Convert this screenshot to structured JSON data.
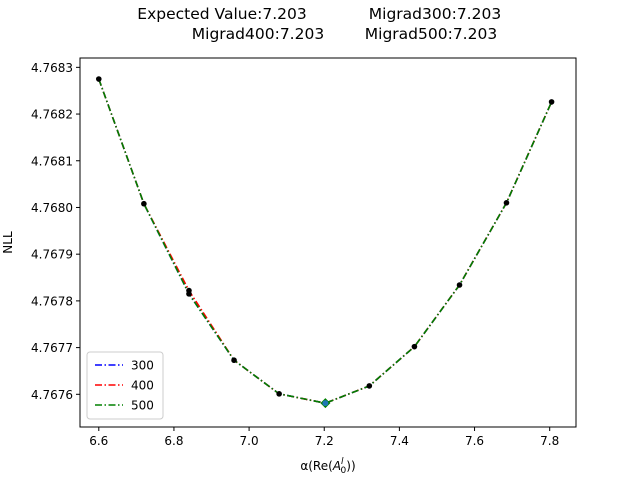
{
  "chart_data": {
    "type": "line",
    "title_lines": [
      [
        "Expected Value:7.203",
        "Migrad300:7.203"
      ],
      [
        "Migrad400:7.203",
        "Migrad500:7.203"
      ]
    ],
    "xlabel_prefix": "α(Re(",
    "xlabel_math": "A",
    "xlabel_sup": "l",
    "xlabel_sub": "0",
    "xlabel_suffix": "))",
    "ylabel": "NLL",
    "xlim": [
      6.55,
      7.87
    ],
    "ylim": [
      4.76753,
      4.76832
    ],
    "xticks": [
      6.6,
      6.8,
      7.0,
      7.2,
      7.4,
      7.6,
      7.8
    ],
    "xtick_labels": [
      "6.6",
      "6.8",
      "7.0",
      "7.2",
      "7.4",
      "7.6",
      "7.8"
    ],
    "yticks": [
      4.7676,
      4.7677,
      4.7678,
      4.7679,
      4.768,
      4.7681,
      4.7682,
      4.7683
    ],
    "ytick_labels": [
      "4.7676",
      "4.7677",
      "4.7678",
      "4.7679",
      "4.7680",
      "4.7681",
      "4.7682",
      "4.7683"
    ],
    "grid": false,
    "legend_position": "lower-left",
    "series": [
      {
        "name": "300",
        "color": "#0000ff",
        "x": [
          6.6,
          6.72,
          6.84,
          6.96,
          7.08,
          7.203,
          7.32,
          7.44,
          7.56,
          7.685,
          7.805
        ],
        "y": [
          4.768275,
          4.768008,
          4.767815,
          4.767673,
          4.767601,
          4.767581,
          4.767618,
          4.767702,
          4.767834,
          4.76801,
          4.768226
        ]
      },
      {
        "name": "400",
        "color": "#ff0000",
        "x": [
          6.6,
          6.72,
          6.84,
          6.96,
          7.08,
          7.203,
          7.32,
          7.44,
          7.56,
          7.685,
          7.805
        ],
        "y": [
          4.768275,
          4.768008,
          4.767822,
          4.767673,
          4.767601,
          4.767581,
          4.767618,
          4.767702,
          4.767834,
          4.76801,
          4.768226
        ]
      },
      {
        "name": "500",
        "color": "#008000",
        "x": [
          6.6,
          6.72,
          6.84,
          6.96,
          7.08,
          7.203,
          7.32,
          7.44,
          7.56,
          7.685,
          7.805
        ],
        "y": [
          4.768275,
          4.768008,
          4.767815,
          4.767673,
          4.767601,
          4.767581,
          4.767618,
          4.767702,
          4.767834,
          4.76801,
          4.768226
        ]
      }
    ],
    "points": {
      "color": "#000000",
      "x": [
        6.6,
        6.72,
        6.84,
        6.84,
        6.96,
        7.08,
        7.32,
        7.44,
        7.56,
        7.685,
        7.805
      ],
      "y": [
        4.768275,
        4.768008,
        4.767822,
        4.767815,
        4.767673,
        4.767601,
        4.767618,
        4.767702,
        4.767834,
        4.76801,
        4.768226
      ]
    },
    "minimum_markers": [
      {
        "x": 7.203,
        "y": 4.767581,
        "color": "#008000"
      },
      {
        "x": 7.203,
        "y": 4.767581,
        "color": "#1f77b4"
      }
    ]
  }
}
